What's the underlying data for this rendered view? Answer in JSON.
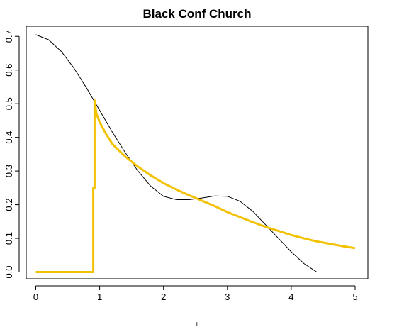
{
  "chart_data": {
    "type": "line",
    "title": "Black Conf Church",
    "xlabel": "t",
    "ylabel": "",
    "xlim": [
      -0.15,
      5.2
    ],
    "ylim": [
      -0.02,
      0.73
    ],
    "x_ticks": [
      0,
      1,
      2,
      3,
      4,
      5
    ],
    "x_tick_labels": [
      "0",
      "1",
      "2",
      "3",
      "4",
      "5"
    ],
    "y_ticks": [
      0.0,
      0.1,
      0.2,
      0.3,
      0.4,
      0.5,
      0.6,
      0.7
    ],
    "y_tick_labels": [
      "0.0",
      "0.1",
      "0.2",
      "0.3",
      "0.4",
      "0.5",
      "0.6",
      "0.7"
    ],
    "grid": false,
    "legend": "none",
    "series": [
      {
        "color": "#000000",
        "points": [
          [
            0.0,
            0.705
          ],
          [
            0.2,
            0.69
          ],
          [
            0.4,
            0.655
          ],
          [
            0.6,
            0.605
          ],
          [
            0.8,
            0.545
          ],
          [
            1.0,
            0.48
          ],
          [
            1.2,
            0.415
          ],
          [
            1.4,
            0.355
          ],
          [
            1.6,
            0.3
          ],
          [
            1.8,
            0.255
          ],
          [
            2.0,
            0.225
          ],
          [
            2.2,
            0.215
          ],
          [
            2.4,
            0.215
          ],
          [
            2.6,
            0.22
          ],
          [
            2.8,
            0.226
          ],
          [
            3.0,
            0.225
          ],
          [
            3.2,
            0.21
          ],
          [
            3.4,
            0.18
          ],
          [
            3.6,
            0.14
          ],
          [
            3.8,
            0.1
          ],
          [
            4.0,
            0.06
          ],
          [
            4.2,
            0.025
          ],
          [
            4.4,
            0.0
          ],
          [
            4.6,
            0.0
          ],
          [
            4.8,
            0.0
          ],
          [
            5.0,
            0.0
          ]
        ]
      },
      {
        "color": "#f2c200",
        "points": [
          [
            0.0,
            0.0
          ],
          [
            0.9,
            0.0
          ],
          [
            0.9,
            0.25
          ],
          [
            0.92,
            0.25
          ],
          [
            0.92,
            0.51
          ],
          [
            0.95,
            0.47
          ],
          [
            1.0,
            0.445
          ],
          [
            1.1,
            0.41
          ],
          [
            1.2,
            0.38
          ],
          [
            1.4,
            0.343
          ],
          [
            1.6,
            0.313
          ],
          [
            1.8,
            0.287
          ],
          [
            2.0,
            0.264
          ],
          [
            2.2,
            0.245
          ],
          [
            2.4,
            0.228
          ],
          [
            2.6,
            0.212
          ],
          [
            2.8,
            0.196
          ],
          [
            3.0,
            0.178
          ],
          [
            3.2,
            0.163
          ],
          [
            3.4,
            0.148
          ],
          [
            3.6,
            0.134
          ],
          [
            3.8,
            0.122
          ],
          [
            4.0,
            0.11
          ],
          [
            4.2,
            0.1
          ],
          [
            4.4,
            0.091
          ],
          [
            4.6,
            0.084
          ],
          [
            4.8,
            0.077
          ],
          [
            5.0,
            0.071
          ]
        ]
      }
    ]
  }
}
